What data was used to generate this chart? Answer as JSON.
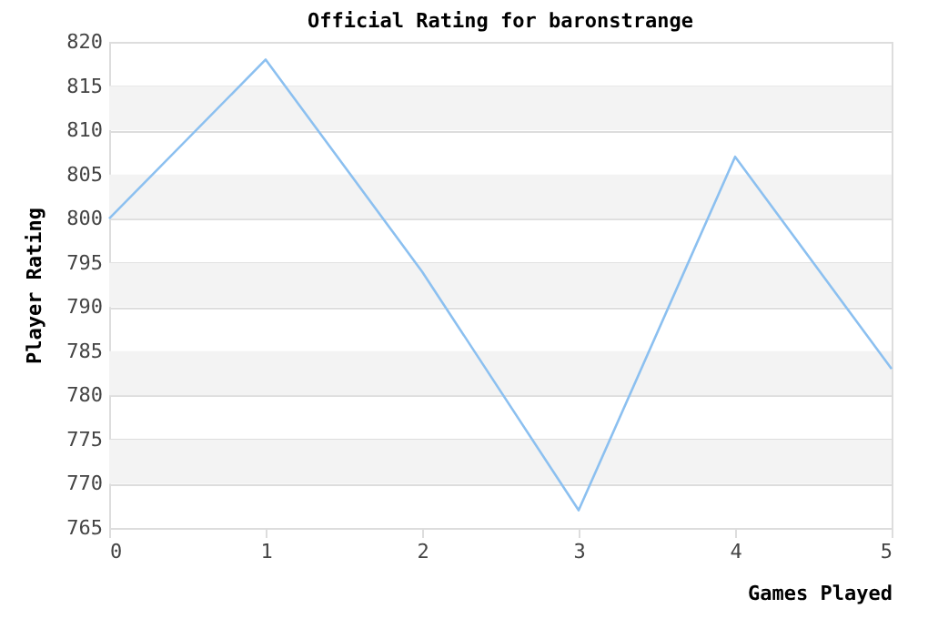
{
  "chart_data": {
    "type": "line",
    "title": "Official Rating for baronstrange",
    "xlabel": "Games Played",
    "ylabel": "Player Rating",
    "x": [
      0,
      1,
      2,
      3,
      4,
      5
    ],
    "series": [
      {
        "color": "#8cc0f0",
        "values": [
          800,
          818,
          794,
          767,
          807,
          783
        ]
      }
    ],
    "xlim": [
      0,
      5
    ],
    "xticks": [
      0,
      1,
      2,
      3,
      4,
      5
    ],
    "ylim": [
      765,
      820
    ],
    "yticks": [
      765,
      770,
      775,
      780,
      785,
      790,
      795,
      800,
      805,
      810,
      815,
      820
    ],
    "grid": "y",
    "legend": false,
    "marker": "none",
    "line_style": "solid"
  }
}
